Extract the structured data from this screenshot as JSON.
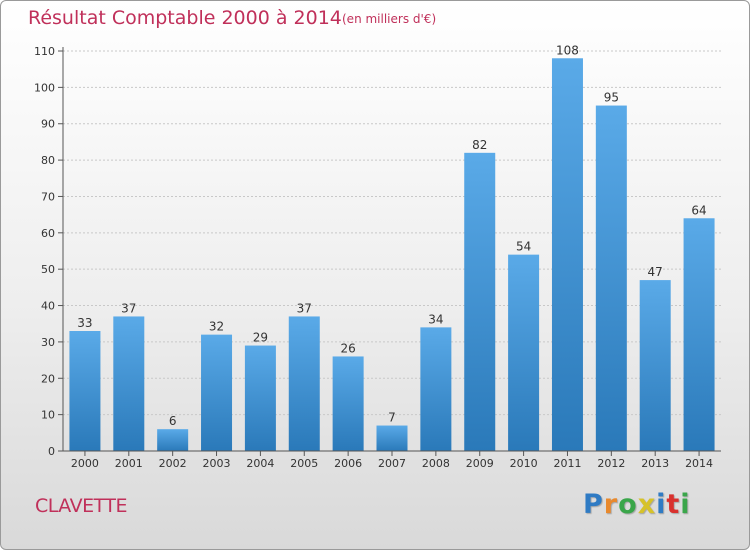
{
  "header": {
    "title": "Résultat Comptable 2000 à 2014",
    "unit": "(en milliers d'€)"
  },
  "footer": {
    "city": "CLAVETTE",
    "logo_letters": [
      "P",
      "r",
      "o",
      "x",
      "i",
      "t",
      "i"
    ]
  },
  "colors": {
    "bar": "#4f9fdf",
    "bar_dark": "#2878b8",
    "text_accent": "#c0305a",
    "grid": "#c8c8c8"
  },
  "chart_data": {
    "type": "bar",
    "categories": [
      "2000",
      "2001",
      "2002",
      "2003",
      "2004",
      "2005",
      "2006",
      "2007",
      "2008",
      "2009",
      "2010",
      "2011",
      "2012",
      "2013",
      "2014"
    ],
    "values": [
      33,
      37,
      6,
      32,
      29,
      37,
      26,
      7,
      34,
      82,
      54,
      108,
      95,
      47,
      64
    ],
    "data_labels": [
      "33",
      "37",
      "6",
      "32",
      "29",
      "37",
      "26",
      "7",
      "34",
      "82",
      "54",
      "108",
      "95",
      "47",
      "64"
    ],
    "yticks": [
      "0",
      "10",
      "20",
      "30",
      "40",
      "50",
      "60",
      "70",
      "80",
      "90",
      "100",
      "110"
    ],
    "ylim": [
      0,
      110
    ],
    "grid": true,
    "legend": "none"
  }
}
